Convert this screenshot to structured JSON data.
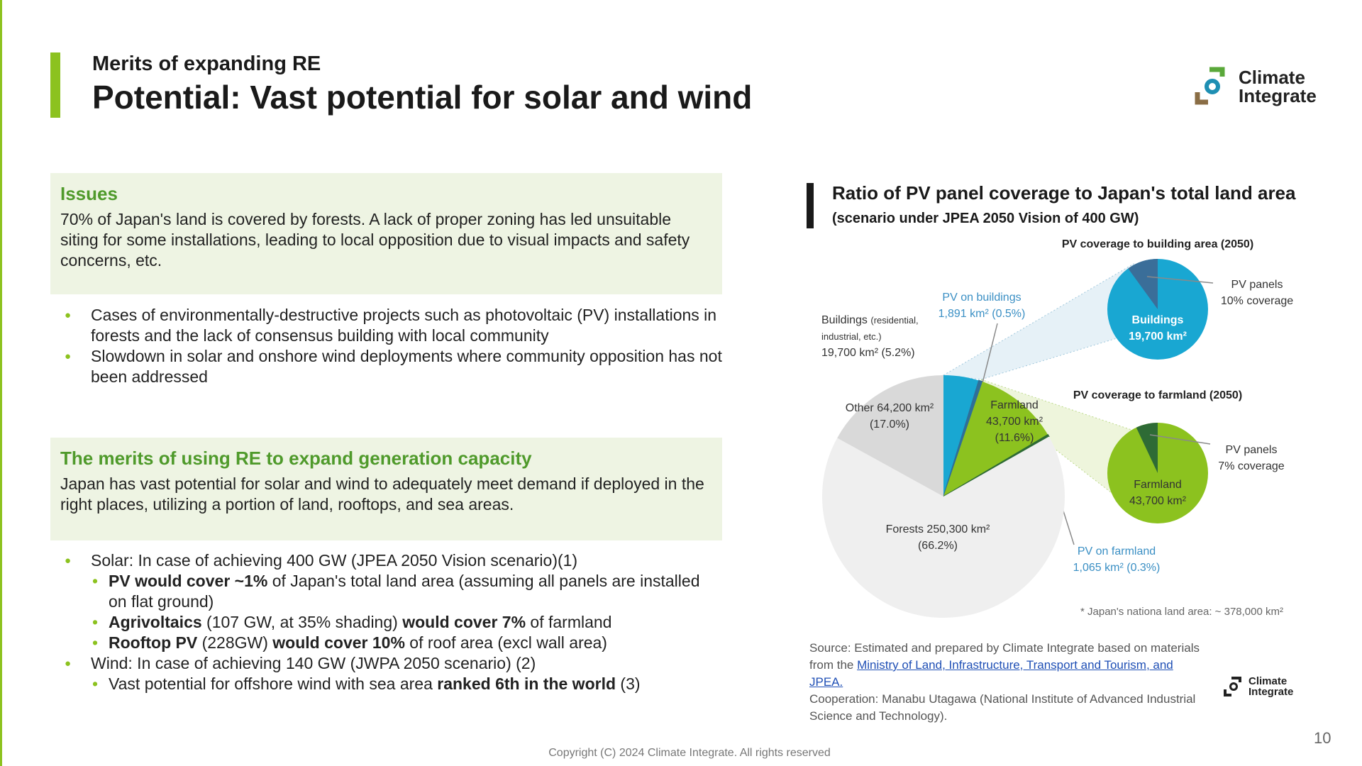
{
  "header": {
    "kicker": "Merits of expanding RE",
    "title": "Potential: Vast potential for solar and wind"
  },
  "logo": {
    "line1": "Climate",
    "line2": "Integrate"
  },
  "issues": {
    "heading": "Issues",
    "text": "70% of Japan's land is covered by forests. A lack of proper zoning has led unsuitable siting for some installations, leading to local opposition due to visual impacts and safety concerns, etc.",
    "bullets": [
      {
        "runs": [
          {
            "text": "Cases of environmentally-destructive projects such as photovoltaic (PV) installations in forests and the lack of consensus building with local community"
          }
        ]
      },
      {
        "runs": [
          {
            "text": "Slowdown in solar and onshore wind deployments where community opposition has not been addressed"
          }
        ]
      }
    ]
  },
  "merits": {
    "heading": "The merits of using RE to expand generation capacity",
    "text": "Japan has vast potential for solar and wind to adequately meet demand if deployed in the right places, utilizing a portion of land, rooftops, and sea areas.",
    "bullets": [
      {
        "runs": [
          {
            "text": "Solar: In case of achieving 400 GW (JPEA 2050 Vision scenario)(1)"
          }
        ],
        "sub": [
          {
            "runs": [
              {
                "text": "PV would cover ~1%",
                "bold": true
              },
              {
                "text": " of Japan's total land area (assuming all panels are installed on flat ground)"
              }
            ]
          },
          {
            "runs": [
              {
                "text": "Agrivoltaics",
                "bold": true
              },
              {
                "text": " (107 GW, at 35% shading) "
              },
              {
                "text": "would cover 7%",
                "bold": true
              },
              {
                "text": " of farmland"
              }
            ]
          },
          {
            "runs": [
              {
                "text": "Rooftop PV",
                "bold": true
              },
              {
                "text": " (228GW) "
              },
              {
                "text": "would cover 10%",
                "bold": true
              },
              {
                "text": " of roof area (excl wall area)"
              }
            ]
          }
        ]
      },
      {
        "runs": [
          {
            "text": "Wind: In case of achieving 140 GW (JWPA 2050 scenario) (2)"
          }
        ],
        "sub": [
          {
            "runs": [
              {
                "text": "Vast potential for offshore wind with sea area "
              },
              {
                "text": "ranked 6th in the world",
                "bold": true
              },
              {
                "text": " (3)"
              }
            ]
          }
        ]
      }
    ]
  },
  "chart_panel": {
    "title": "Ratio of PV panel coverage to Japan's total land area",
    "subtitle": "(scenario under JPEA 2050 Vision of 400 GW)",
    "note": "* Japan's nationa land area:  ~ 378,000 km²",
    "source": [
      {
        "text": "Source: Estimated and prepared by Climate Integrate based on materials from the "
      },
      {
        "text": "Ministry of Land, Infrastructure, Transport and Tourism, and JPEA.",
        "link": true
      }
    ],
    "cooperation": "Cooperation: Manabu Utagawa (National Institute of Advanced Industrial Science and Technology)."
  },
  "chart_data": [
    {
      "type": "pie",
      "categories": [
        "Buildings",
        "Farmland",
        "Forests",
        "Other"
      ],
      "category_notes": [
        "(residential, industrial, etc.)",
        null,
        null,
        null
      ],
      "values": [
        19700,
        43700,
        250300,
        64200
      ],
      "value_labels": [
        "19,700 km²",
        "43,700 km²",
        "250,300 km²",
        "64,200 km²"
      ],
      "shares": [
        "(5.2%)",
        "(11.6%)",
        "(66.2%)",
        "(17.0%)"
      ],
      "colors": [
        "#19a7d2",
        "#8cc21f",
        "#efefef",
        "#d9d9d9"
      ],
      "sub_names": [
        "PV on buildings",
        "PV on farmland",
        null,
        null
      ],
      "sub_values": [
        1891,
        1065,
        null,
        null
      ],
      "sub_value_labels": [
        "1,891 km²",
        "1,065 km²",
        null,
        null
      ],
      "sub_shares": [
        "(0.5%)",
        "(0.3%)",
        null,
        null
      ],
      "sub_colors": [
        "#2f6f98",
        "#2e6b35",
        null,
        null
      ]
    },
    {
      "type": "coverage-pie",
      "title": "PV coverage to building area (2050)",
      "center_label": "Buildings",
      "total": 19700,
      "total_label": "19,700 km²",
      "highlight_name": "PV panels",
      "highlight": 10,
      "highlight_label": "10% coverage",
      "color": "#19a7d2",
      "highlight_color": "#3a6e99"
    },
    {
      "type": "coverage-pie",
      "title": "PV coverage to farmland (2050)",
      "center_label": "Farmland",
      "total": 43700,
      "total_label": "43,700 km²",
      "highlight_name": "PV panels",
      "highlight": 7,
      "highlight_label": "7% coverage",
      "color": "#8cc21f",
      "highlight_color": "#2e6b35"
    }
  ],
  "page_number": "10",
  "copyright": "Copyright (C) 2024 Climate Integrate. All rights reserved"
}
